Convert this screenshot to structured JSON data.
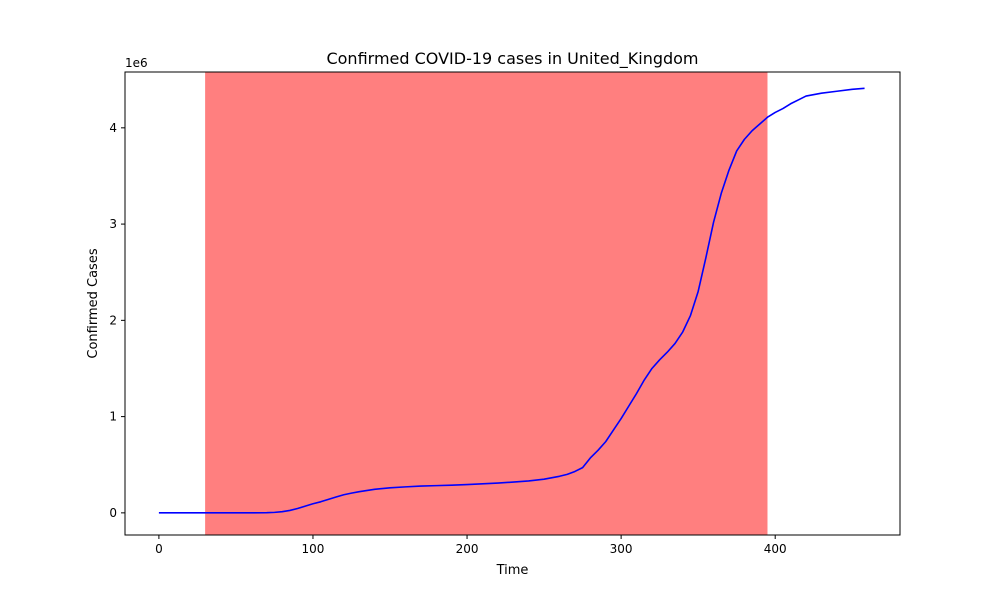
{
  "chart_data": {
    "type": "line",
    "title": "Confirmed COVID-19 cases in United_Kingdom",
    "xlabel": "Time",
    "ylabel": "Confirmed Cases",
    "y_offset_label": "1e6",
    "xlim": [
      -22,
      481
    ],
    "ylim": [
      -230000,
      4580000
    ],
    "x_ticks": [
      0,
      100,
      200,
      300,
      400
    ],
    "y_ticks": [
      0,
      1000000,
      2000000,
      3000000,
      4000000
    ],
    "y_tick_labels": [
      "0",
      "1",
      "2",
      "3",
      "4"
    ],
    "grid": false,
    "shaded_region": {
      "x_start": 30,
      "x_end": 395,
      "color": "#ff0000",
      "opacity": 0.5
    },
    "series": [
      {
        "color": "#0000ff",
        "x": [
          0,
          20,
          40,
          60,
          70,
          75,
          80,
          85,
          90,
          95,
          100,
          105,
          110,
          115,
          120,
          125,
          130,
          140,
          150,
          160,
          170,
          180,
          190,
          200,
          210,
          220,
          230,
          240,
          250,
          260,
          265,
          270,
          275,
          280,
          285,
          290,
          295,
          300,
          305,
          310,
          315,
          320,
          325,
          330,
          335,
          340,
          345,
          350,
          355,
          360,
          365,
          370,
          375,
          380,
          385,
          390,
          395,
          400,
          405,
          410,
          415,
          420,
          430,
          440,
          450,
          458
        ],
        "y": [
          0,
          0,
          0,
          0,
          2000,
          5000,
          12000,
          25000,
          45000,
          70000,
          95000,
          115000,
          140000,
          165000,
          188000,
          205000,
          220000,
          245000,
          260000,
          270000,
          278000,
          283000,
          288000,
          294000,
          302000,
          310000,
          320000,
          332000,
          350000,
          380000,
          400000,
          430000,
          470000,
          570000,
          650000,
          740000,
          860000,
          980000,
          1110000,
          1240000,
          1380000,
          1500000,
          1590000,
          1670000,
          1760000,
          1880000,
          2050000,
          2300000,
          2650000,
          3020000,
          3320000,
          3560000,
          3760000,
          3880000,
          3970000,
          4040000,
          4110000,
          4160000,
          4200000,
          4250000,
          4290000,
          4330000,
          4360000,
          4380000,
          4400000,
          4410000
        ]
      }
    ]
  }
}
